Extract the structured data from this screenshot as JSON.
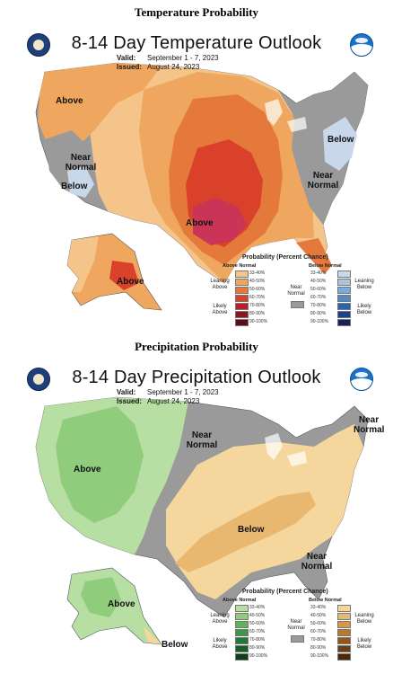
{
  "sections": {
    "temperature_heading": "Temperature Probability",
    "precipitation_heading": "Precipitation Probability"
  },
  "temperature": {
    "title": "8-14 Day Temperature Outlook",
    "valid_label": "Valid:",
    "valid_value": "September 1 - 7, 2023",
    "issued_label": "Issued:",
    "issued_value": "August 24, 2023",
    "labels": {
      "above_nw": "Above",
      "near_normal_west": "Near Normal",
      "below_west": "Below",
      "above_south": "Above",
      "below_east": "Below",
      "near_normal_east": "Near Normal",
      "above_alaska": "Above"
    },
    "legend": {
      "title": "Probability (Percent Chance)",
      "above_head": "Above Normal",
      "below_head": "Below Normal",
      "near_normal": "Near Normal",
      "above_leaning": "Leaning Above",
      "above_likely": "Likely Above",
      "below_leaning": "Leaning Below",
      "below_likely": "Likely Below",
      "ranges": [
        "33-40%",
        "40-50%",
        "50-60%",
        "60-70%",
        "70-80%",
        "80-90%",
        "90-100%"
      ],
      "above_colors": [
        "#f4c48a",
        "#efa760",
        "#e5793b",
        "#d9412b",
        "#b52228",
        "#8c1520",
        "#5a0f18"
      ],
      "below_colors": [
        "#c9d7ea",
        "#a9c3e2",
        "#7ea8d8",
        "#4f8ccb",
        "#2a64b1",
        "#1d3f8c",
        "#14215c"
      ],
      "near_color": "#9a9a9a"
    }
  },
  "precipitation": {
    "title": "8-14 Day Precipitation Outlook",
    "valid_label": "Valid:",
    "valid_value": "September 1 - 7, 2023",
    "issued_label": "Issued:",
    "issued_value": "August 24, 2023",
    "labels": {
      "above_west": "Above",
      "near_normal_central": "Near Normal",
      "near_normal_ne": "Near Normal",
      "below_central": "Below",
      "near_normal_se": "Near Normal",
      "above_alaska": "Above",
      "below_alaska": "Below"
    },
    "legend": {
      "title": "Probability (Percent Chance)",
      "above_head": "Above Normal",
      "below_head": "Below Normal",
      "near_normal": "Near Normal",
      "above_leaning": "Leaning Above",
      "above_likely": "Likely Above",
      "below_leaning": "Leaning Below",
      "below_likely": "Likely Below",
      "ranges": [
        "33-40%",
        "40-50%",
        "50-60%",
        "60-70%",
        "70-80%",
        "80-90%",
        "90-100%"
      ],
      "above_colors": [
        "#b7dfa4",
        "#8fcc7b",
        "#5fb35a",
        "#3a9742",
        "#207a31",
        "#155f25",
        "#0b4019"
      ],
      "below_colors": [
        "#f5d79e",
        "#e8b870",
        "#d49a45",
        "#b9792c",
        "#93561d",
        "#6f3d14",
        "#4b280c"
      ],
      "near_color": "#9a9a9a"
    }
  }
}
